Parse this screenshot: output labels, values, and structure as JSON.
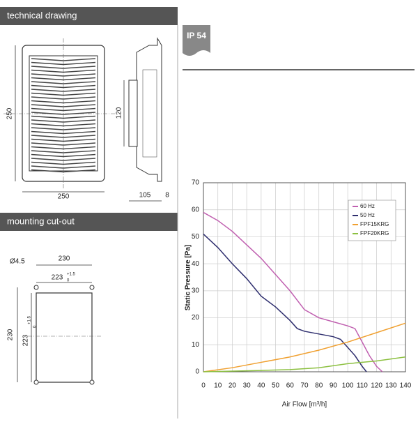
{
  "sections": [
    {
      "title": "technical drawing"
    },
    {
      "title": "mounting cut-out"
    }
  ],
  "badge": "IP 54",
  "drawing": {
    "width": "250",
    "height": "250",
    "depth_height": "120",
    "depth": "105",
    "depth_flange": "8"
  },
  "cutout": {
    "hole": "Ø4.5",
    "outer_width": "230",
    "inner_width": "223",
    "outer_height": "230",
    "inner_height": "223",
    "tol_upper": "+1.5",
    "tol_lower": "0"
  },
  "chart_data": {
    "type": "line",
    "xlabel": "Air Flow [m³/h]",
    "ylabel": "Static Pressure [Pa]",
    "xlim": [
      0,
      140
    ],
    "xticks": [
      0,
      10,
      20,
      30,
      40,
      50,
      60,
      70,
      80,
      90,
      100,
      110,
      120,
      130,
      140
    ],
    "ylim": [
      0,
      70
    ],
    "yticks": [
      0,
      10,
      20,
      30,
      40,
      50,
      60,
      70
    ],
    "grid": true,
    "series": [
      {
        "name": "60 Hz",
        "color": "#c060b0",
        "x": [
          0,
          10,
          20,
          30,
          40,
          50,
          60,
          70,
          80,
          90,
          100,
          105,
          110,
          115,
          120,
          124
        ],
        "values": [
          59,
          56,
          52,
          47,
          42,
          36,
          30,
          23,
          20,
          18.5,
          17,
          16,
          11,
          6,
          2,
          0
        ]
      },
      {
        "name": "50 Hz",
        "color": "#2e2e6e",
        "x": [
          0,
          10,
          20,
          30,
          40,
          50,
          60,
          65,
          70,
          80,
          90,
          95,
          100,
          105,
          110,
          113
        ],
        "values": [
          51,
          46,
          40,
          34.5,
          28,
          24,
          19,
          16,
          15,
          14,
          13,
          12,
          9,
          6,
          2,
          0
        ]
      },
      {
        "name": "FPF15KRG",
        "color": "#f0a030",
        "x": [
          0,
          20,
          40,
          60,
          80,
          100,
          120,
          140
        ],
        "values": [
          0,
          1.5,
          3.5,
          5.5,
          8,
          11,
          14.5,
          18
        ]
      },
      {
        "name": "FPF20KRG",
        "color": "#8cc040",
        "x": [
          0,
          40,
          60,
          80,
          100,
          120,
          140
        ],
        "values": [
          0,
          0.5,
          0.8,
          1.5,
          3,
          4,
          5.5
        ]
      }
    ]
  }
}
